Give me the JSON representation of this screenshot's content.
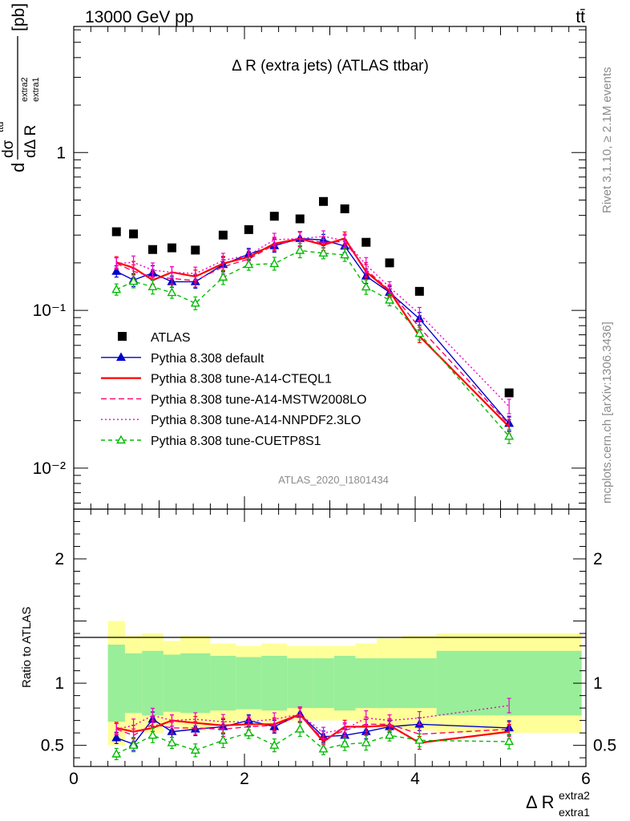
{
  "header": {
    "energy_label": "13000 GeV pp",
    "process_label": "tt̄"
  },
  "side_labels": {
    "rivet": "Rivet 3.1.10, ≥ 2.1M events",
    "mcplots": "mcplots.cern.ch [arXiv:1306.3436]"
  },
  "chart_data": {
    "type": "line",
    "title": "Δ R (extra jets) (ATLAS ttbar)",
    "analysis_id": "ATLAS_2020_I1801434",
    "ylabel_parts": {
      "d": "d",
      "num": "dσ",
      "num_sup": "ttd",
      "den": "dΔ R",
      "den_sup": "extra2",
      "den_sub": "extra1",
      "unit": "[pb]"
    },
    "xlabel_parts": {
      "main": "Δ R",
      "sup": "extra2",
      "sub": "extra1"
    },
    "ratio_ylabel": "Ratio to ATLAS",
    "xlim": [
      0,
      6
    ],
    "ylim_main": [
      0.0055,
      6.3
    ],
    "ylim_ratio": [
      0.33,
      2.4
    ],
    "y_scale_main": "log",
    "x_ticks": [
      "0",
      "2",
      "4",
      "6"
    ],
    "y_ticks_main": [
      {
        "value": 1,
        "label": "1"
      },
      {
        "value": 0.1,
        "label": "10⁻¹"
      },
      {
        "value": 0.01,
        "label": "10⁻²"
      }
    ],
    "y_ticks_ratio": [
      {
        "value": 2,
        "label": "2"
      },
      {
        "value": 1,
        "label": "1"
      },
      {
        "value": 0.5,
        "label": "0.5"
      }
    ],
    "legend_position": "lower-left",
    "x": [
      0.5,
      0.7,
      0.925,
      1.15,
      1.425,
      1.75,
      2.05,
      2.35,
      2.65,
      2.925,
      3.175,
      3.425,
      3.7,
      4.05,
      5.1
    ],
    "bin_edges": [
      0.4,
      0.6,
      0.8,
      1.05,
      1.25,
      1.6,
      1.9,
      2.2,
      2.5,
      2.8,
      3.05,
      3.3,
      3.55,
      3.85,
      4.25,
      5.95
    ],
    "atlas": {
      "name": "ATLAS",
      "values": [
        0.315,
        0.305,
        0.243,
        0.249,
        0.241,
        0.3,
        0.325,
        0.395,
        0.38,
        0.49,
        0.44,
        0.27,
        0.2,
        0.132,
        0.03
      ],
      "band_inner": [
        0.31,
        0.24,
        0.26,
        0.23,
        0.24,
        0.22,
        0.21,
        0.22,
        0.2,
        0.2,
        0.22,
        0.2,
        0.2,
        0.2,
        0.26
      ],
      "band_outer": [
        0.5,
        0.38,
        0.4,
        0.34,
        0.38,
        0.32,
        0.3,
        0.32,
        0.3,
        0.3,
        0.3,
        0.32,
        0.36,
        0.38,
        0.4
      ]
    },
    "series": [
      {
        "name": "Pythia 8.308 default",
        "color": "#0000cc",
        "marker": "triangle-filled",
        "dash": "",
        "ratio": [
          0.56,
          0.51,
          0.71,
          0.61,
          0.63,
          0.65,
          0.7,
          0.65,
          0.75,
          0.57,
          0.58,
          0.61,
          0.65,
          0.67,
          0.64
        ]
      },
      {
        "name": "Pythia 8.308 tune-A14-CTEQL1",
        "color": "#ff0000",
        "marker": "none",
        "dash": "",
        "ratio": [
          0.64,
          0.61,
          0.64,
          0.7,
          0.68,
          0.66,
          0.67,
          0.67,
          0.75,
          0.53,
          0.65,
          0.65,
          0.66,
          0.52,
          0.61
        ]
      },
      {
        "name": "Pythia 8.308 tune-A14-MSTW2008LO",
        "color": "#ff0066",
        "marker": "none",
        "dash": "7,4",
        "ratio": [
          0.63,
          0.58,
          0.67,
          0.64,
          0.64,
          0.63,
          0.65,
          0.66,
          0.74,
          0.55,
          0.62,
          0.67,
          0.67,
          0.59,
          0.63
        ]
      },
      {
        "name": "Pythia 8.308 tune-A14-NNPDF2.3LO",
        "color": "#ee00cc",
        "marker": "none",
        "dash": "2,3",
        "ratio": [
          0.63,
          0.66,
          0.74,
          0.7,
          0.71,
          0.69,
          0.69,
          0.71,
          0.75,
          0.6,
          0.63,
          0.72,
          0.7,
          0.72,
          0.82
        ]
      },
      {
        "name": "Pythia 8.308 tune-CUETP8S1",
        "color": "#00bb00",
        "marker": "triangle-open",
        "dash": "5,4",
        "ratio": [
          0.43,
          0.5,
          0.58,
          0.52,
          0.46,
          0.54,
          0.6,
          0.5,
          0.63,
          0.47,
          0.51,
          0.52,
          0.58,
          0.54,
          0.53
        ]
      }
    ]
  }
}
